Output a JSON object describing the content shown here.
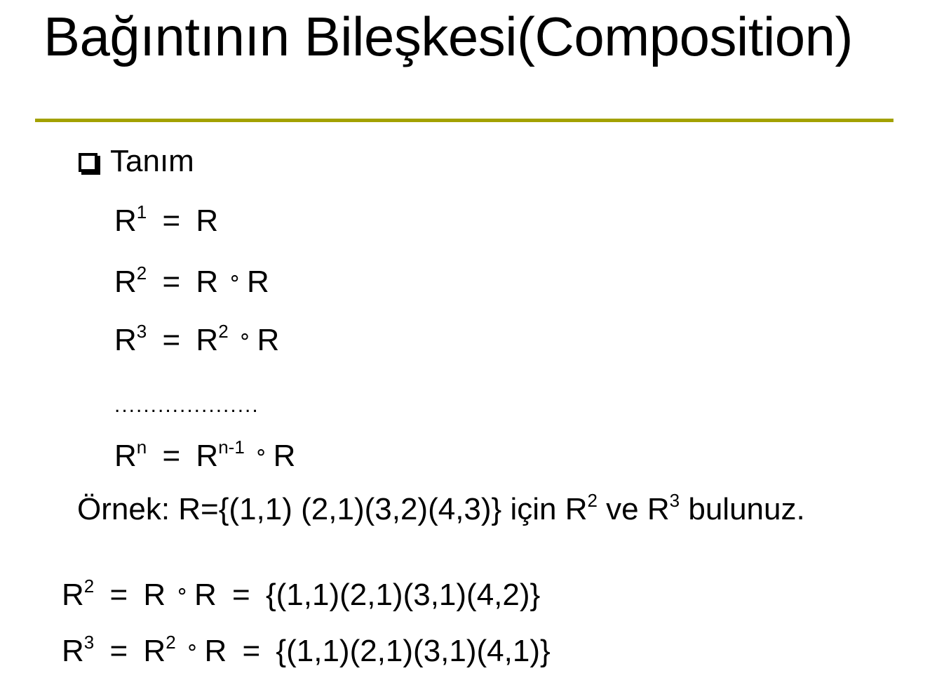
{
  "slide": {
    "title": "Bağıntının Bileşkesi(Composition)",
    "rule_color": "#a3a100"
  },
  "definition": {
    "bullet_label": "Tanım",
    "lines": [
      {
        "lhs_base": "R",
        "lhs_sup": "1",
        "eq": "=",
        "rhs": "R"
      },
      {
        "lhs_base": "R",
        "lhs_sup": "2",
        "eq": "=",
        "rhs_a": "R",
        "comp": "∘",
        "rhs_b": "R"
      },
      {
        "lhs_base": "R",
        "lhs_sup": "3",
        "eq": "=",
        "rhs_a": "R",
        "rhs_a_sup": "2",
        "comp": "∘",
        "rhs_b": "R"
      },
      {
        "lhs_base": "R",
        "lhs_sup": "n",
        "eq": "=",
        "rhs_a": "R",
        "rhs_a_sup": "n-1",
        "comp": "∘",
        "rhs_b": "R"
      }
    ],
    "ellipsis": "...................."
  },
  "example": {
    "text_before": "Örnek: R={(1,1) (2,1)(3,2)(4,3)} için R",
    "sup_a": "2",
    "text_mid": " ve R",
    "sup_b": "3",
    "text_after": " bulunuz."
  },
  "results": [
    {
      "lhs_base": "R",
      "lhs_sup": "2",
      "eq": "=",
      "a": "R",
      "a_sup": "",
      "comp": "∘",
      "b": "R",
      "eq2": "=",
      "set": "{(1,1)(2,1)(3,1)(4,2)}"
    },
    {
      "lhs_base": "R",
      "lhs_sup": "3",
      "eq": "=",
      "a": "R",
      "a_sup": "2",
      "comp": "∘",
      "b": "R",
      "eq2": "=",
      "set": "{(1,1)(2,1)(3,1)(4,1)}"
    }
  ]
}
